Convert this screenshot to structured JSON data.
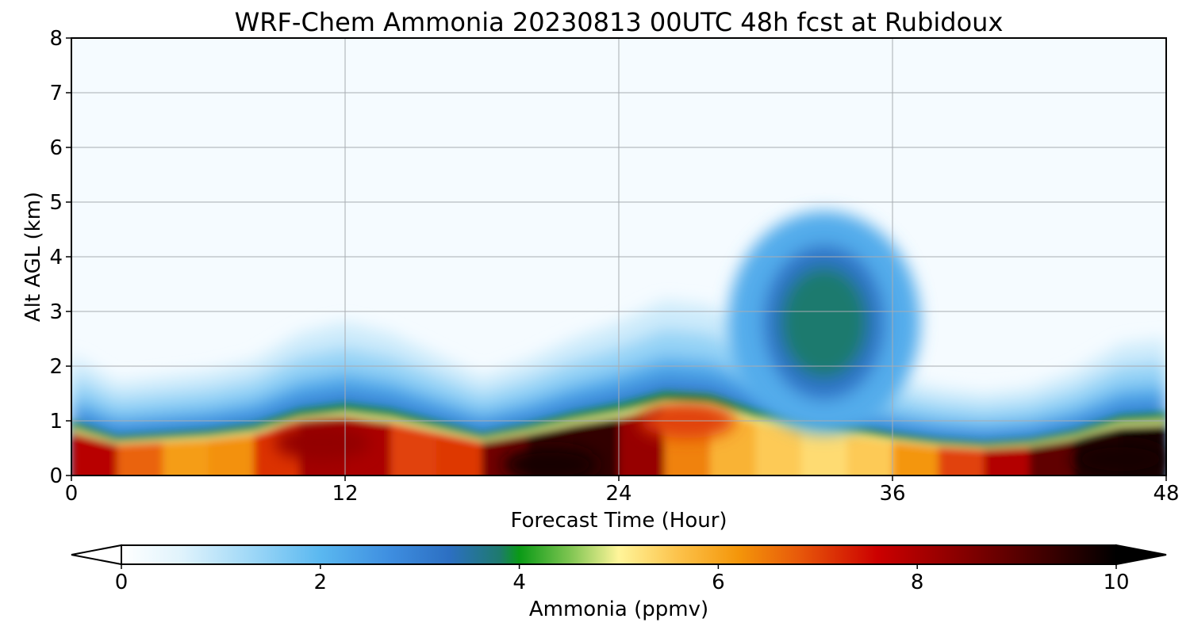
{
  "chart_data": {
    "type": "heatmap",
    "title": "WRF-Chem Ammonia  20230813 00UTC 48h fcst at Rubidoux",
    "xlabel": "Forecast Time (Hour)",
    "ylabel": "Alt AGL (km)",
    "xlim": [
      0,
      48
    ],
    "ylim": [
      0,
      8
    ],
    "x_ticks": [
      "0",
      "12",
      "24",
      "36",
      "48"
    ],
    "y_ticks": [
      "0",
      "1",
      "2",
      "3",
      "4",
      "5",
      "6",
      "7",
      "8"
    ],
    "grid": true,
    "colorbar": {
      "label": "Ammonia  (ppmv)",
      "range": [
        0,
        10
      ],
      "ticks": [
        "0",
        "2",
        "4",
        "6",
        "8",
        "10"
      ],
      "extend": "both",
      "placement": "bottom"
    },
    "surface_layer": {
      "hour": [
        0,
        2,
        4,
        6,
        8,
        10,
        12,
        14,
        16,
        18,
        20,
        22,
        24,
        26,
        28,
        30,
        32,
        34,
        36,
        38,
        40,
        42,
        44,
        46,
        48
      ],
      "top_km": [
        0.9,
        0.65,
        0.7,
        0.75,
        0.85,
        1.1,
        1.2,
        1.1,
        0.9,
        0.7,
        0.85,
        1.05,
        1.2,
        1.4,
        1.35,
        1.1,
        1.0,
        0.85,
        0.7,
        0.6,
        0.55,
        0.6,
        0.75,
        1.0,
        1.05
      ],
      "surface_ppmv": [
        8.5,
        7.2,
        6.2,
        6.0,
        6.5,
        7.8,
        8.4,
        7.6,
        6.4,
        7.8,
        9.6,
        9.2,
        9.7,
        6.8,
        6.0,
        5.6,
        5.4,
        5.2,
        5.8,
        6.6,
        7.4,
        8.4,
        9.4,
        9.8,
        9.8
      ]
    },
    "features": [
      {
        "hour": 33,
        "alt_km": 2.8,
        "ppmv": 3.8
      },
      {
        "hour": 11,
        "alt_km": 0.6,
        "ppmv": 8.3
      },
      {
        "hour": 27,
        "alt_km": 1.0,
        "ppmv": 7.0
      },
      {
        "hour": 21,
        "alt_km": 0.2,
        "ppmv": 9.8
      },
      {
        "hour": 46,
        "alt_km": 0.3,
        "ppmv": 9.8
      }
    ]
  }
}
